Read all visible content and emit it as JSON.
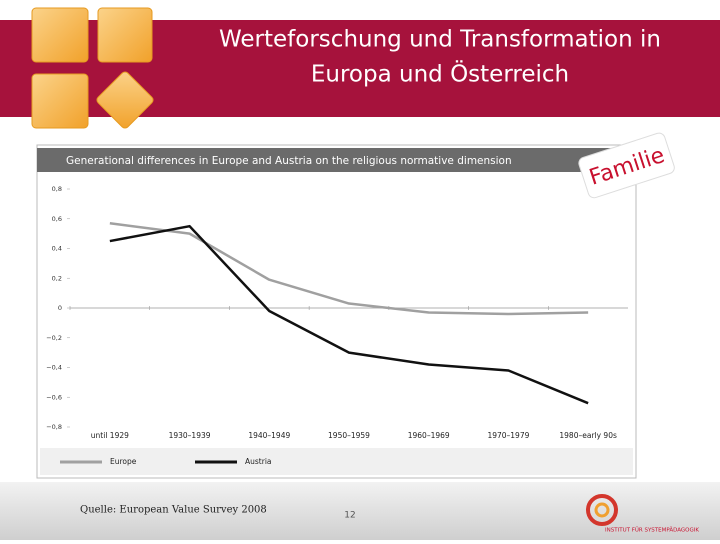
{
  "slide": {
    "title_lines": [
      "Werteforschung und Transformation in",
      "Europa und Österreich"
    ],
    "tag": "Familie",
    "source": "Quelle: European Value Survey 2008",
    "page": "12",
    "logo_text": "INSTITUT FÜR SYSTEMPÄDAGOGIK"
  },
  "chart_data": {
    "type": "line",
    "title": "Generational differences in Europe and Austria on the religious normative dimension",
    "categories": [
      "until 1929",
      "1930–1939",
      "1940–1949",
      "1950–1959",
      "1960–1969",
      "1970–1979",
      "1980–early 90s"
    ],
    "series": [
      {
        "name": "Europe",
        "color": "#a0a0a0",
        "values": [
          0.57,
          0.5,
          0.19,
          0.03,
          -0.03,
          -0.04,
          -0.03
        ]
      },
      {
        "name": "Austria",
        "color": "#111111",
        "values": [
          0.45,
          0.55,
          -0.02,
          -0.3,
          -0.38,
          -0.42,
          -0.64
        ]
      }
    ],
    "ylim": [
      -0.8,
      0.8
    ],
    "yticks": [
      {
        "value": 0.8,
        "label": "0,8"
      },
      {
        "value": 0.6,
        "label": "0,6"
      },
      {
        "value": 0.4,
        "label": "0,4"
      },
      {
        "value": 0.2,
        "label": "0,2"
      },
      0,
      {
        "value": -0.2,
        "label": "−0,2"
      },
      {
        "value": -0.4,
        "label": "−0,4"
      },
      {
        "value": -0.6,
        "label": "−0,6"
      },
      {
        "value": -0.8,
        "label": "−0,8"
      }
    ],
    "grid": false,
    "legend": "bottom"
  }
}
